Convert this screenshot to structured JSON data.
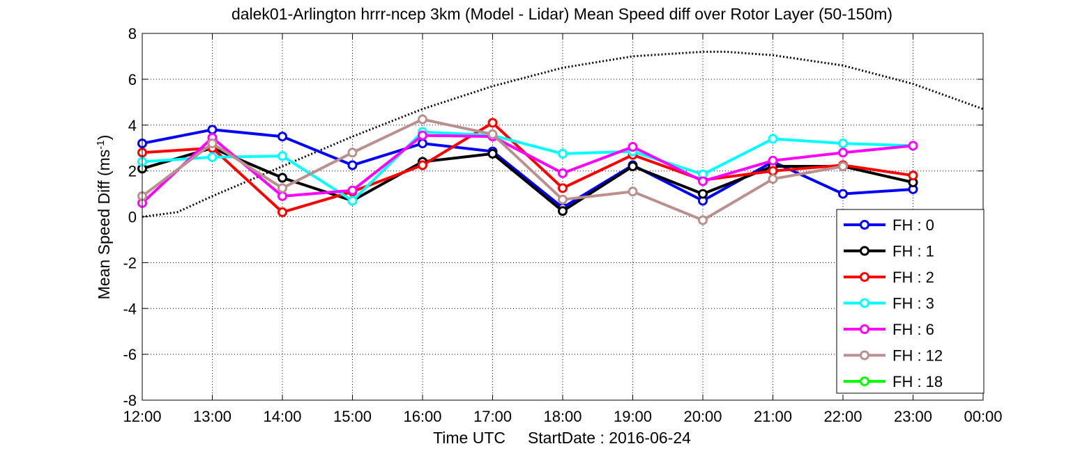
{
  "chart_data": {
    "type": "line",
    "title": "dalek01-Arlington hrrr-ncep 3km (Model - Lidar) Mean Speed diff over Rotor Layer (50-150m)",
    "xlabel": "Time UTC     StartDate : 2016-06-24",
    "ylabel_main": "Mean Speed Diff (ms",
    "ylabel_sup": "-1",
    "ylabel_close": ")",
    "x_ticks": [
      "12:00",
      "13:00",
      "14:00",
      "15:00",
      "16:00",
      "17:00",
      "18:00",
      "19:00",
      "20:00",
      "21:00",
      "22:00",
      "23:00",
      "00:00"
    ],
    "y_ticks": [
      "-8",
      "-6",
      "-4",
      "-2",
      "0",
      "2",
      "4",
      "6",
      "8"
    ],
    "xlim": [
      "12:00",
      "00:00"
    ],
    "ylim": [
      -8,
      8
    ],
    "grid": true,
    "legend_position": "bottom-right",
    "series": [
      {
        "name": "FH : 0",
        "color": "#0000ff",
        "values": [
          3.2,
          3.8,
          3.5,
          2.25,
          3.2,
          2.85,
          0.4,
          2.25,
          0.7,
          2.4,
          1.0,
          1.2
        ]
      },
      {
        "name": "FH : 1",
        "color": "#000000",
        "values": [
          2.1,
          3.0,
          1.7,
          0.7,
          2.4,
          2.75,
          0.25,
          2.2,
          1.0,
          2.2,
          2.2,
          1.5
        ]
      },
      {
        "name": "FH : 2",
        "color": "#ff0000",
        "values": [
          2.8,
          3.0,
          0.2,
          1.1,
          2.25,
          4.1,
          1.25,
          2.7,
          1.6,
          2.0,
          2.25,
          1.8
        ]
      },
      {
        "name": "FH : 3",
        "color": "#00ffff",
        "values": [
          2.4,
          2.6,
          2.65,
          0.7,
          3.7,
          3.55,
          2.75,
          2.85,
          1.85,
          3.4,
          3.2,
          3.1
        ]
      },
      {
        "name": "FH : 6",
        "color": "#ff00ff",
        "values": [
          0.6,
          3.45,
          0.9,
          1.15,
          3.55,
          3.5,
          1.9,
          3.05,
          1.55,
          2.45,
          2.8,
          3.1
        ]
      },
      {
        "name": "FH : 12",
        "color": "#bc8f8f",
        "values": [
          0.9,
          3.2,
          1.25,
          2.8,
          4.25,
          3.6,
          0.75,
          1.1,
          -0.15,
          1.65,
          2.2,
          null
        ]
      },
      {
        "name": "FH : 18",
        "color": "#00ff00",
        "values": []
      }
    ],
    "reference_curve": {
      "style": "dotted",
      "color": "#000000",
      "x_hours": [
        12.0,
        12.5,
        13.0,
        14.0,
        15.0,
        16.0,
        17.0,
        18.0,
        19.0,
        20.0,
        20.33,
        21.0,
        22.0,
        23.0,
        24.0
      ],
      "y": [
        0.0,
        0.2,
        0.9,
        2.2,
        3.5,
        4.7,
        5.7,
        6.5,
        7.0,
        7.2,
        7.2,
        7.05,
        6.6,
        5.8,
        4.7
      ]
    },
    "colors": {
      "marker_fill": "#ffffff",
      "grid": "#000000"
    }
  }
}
